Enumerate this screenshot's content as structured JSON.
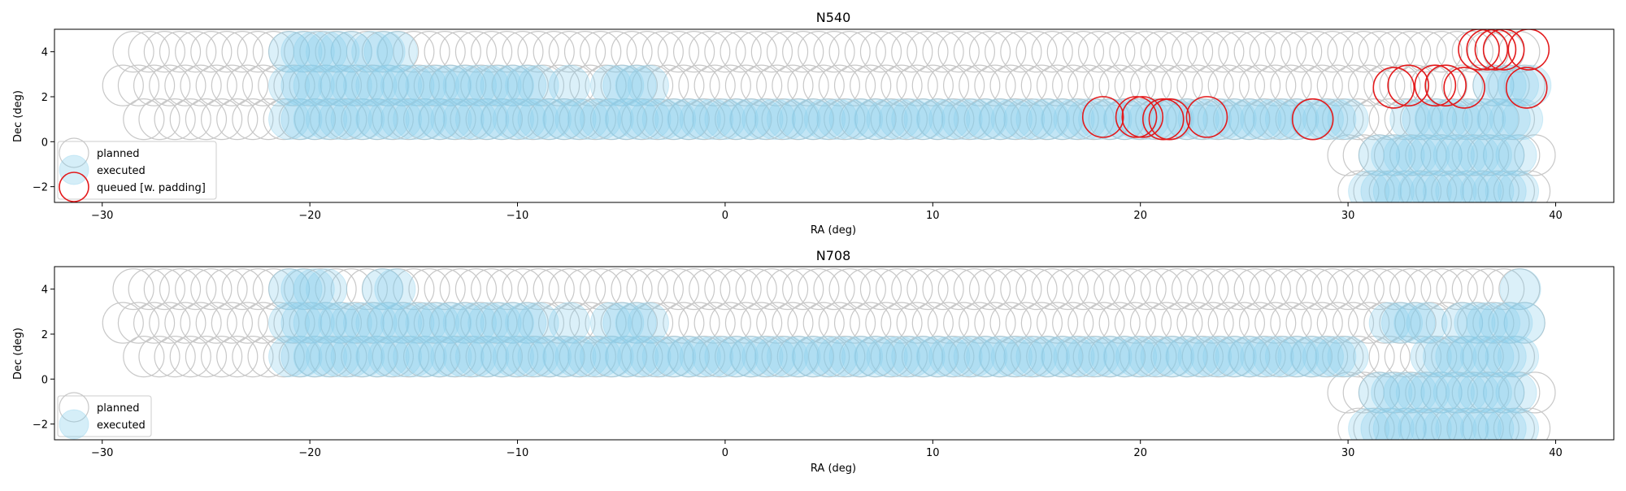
{
  "chart_data": [
    {
      "type": "scatter",
      "title": "N540",
      "xlabel": "RA (deg)",
      "ylabel": "Dec (deg)",
      "xlim": [
        -32.3,
        42.8
      ],
      "ylim": [
        -2.7,
        5.0
      ],
      "xticks": [
        -30,
        -20,
        -10,
        0,
        10,
        20,
        30,
        40
      ],
      "yticks": [
        -2,
        0,
        2,
        4
      ],
      "xtick_labels": [
        "−30",
        "−20",
        "−10",
        "0",
        "10",
        "20",
        "30",
        "40"
      ],
      "ytick_labels": [
        "−2",
        "0",
        "2",
        "4"
      ],
      "legend_loc": "lower left",
      "legend": [
        "planned",
        "executed",
        "queued [w. padding]"
      ],
      "colors": {
        "planned": "#c8c8c8",
        "executed": "#87ceeb",
        "queued": "#e31a1c"
      },
      "pointing_radius_deg": 1.0,
      "series": [
        {
          "name": "planned",
          "marker": "open-circle",
          "rows": [
            {
              "dec": 4.0,
              "ra_start": -28.5,
              "ra_end": 38.5,
              "step": 0.75
            },
            {
              "dec": 2.5,
              "ra_start": -29.0,
              "ra_end": 39.0,
              "step": 0.75
            },
            {
              "dec": 1.0,
              "ra_start": -28.0,
              "ra_end": 38.5,
              "step": 0.75
            },
            {
              "dec": -0.6,
              "ra_start": 30.0,
              "ra_end": 39.0,
              "step": 0.75
            },
            {
              "dec": -2.2,
              "ra_start": 30.5,
              "ra_end": 39.0,
              "step": 0.75
            }
          ]
        },
        {
          "name": "executed",
          "marker": "filled-circle",
          "segments": [
            {
              "dec": 4.0,
              "ra_start": -21.0,
              "ra_end": -18.0,
              "step": 0.6
            },
            {
              "dec": 4.0,
              "ra_start": -17.0,
              "ra_end": -15.5,
              "step": 0.6
            },
            {
              "dec": 2.5,
              "ra_start": -21.0,
              "ra_end": -8.5,
              "step": 0.6
            },
            {
              "dec": 2.5,
              "ra_start": -7.5,
              "ra_end": -7.5,
              "step": 0.6
            },
            {
              "dec": 2.5,
              "ra_start": -5.5,
              "ra_end": -3.5,
              "step": 0.6
            },
            {
              "dec": 2.5,
              "ra_start": 37.0,
              "ra_end": 39.0,
              "step": 0.6
            },
            {
              "dec": 1.0,
              "ra_start": -21.0,
              "ra_end": 30.0,
              "step": 0.6
            },
            {
              "dec": 1.0,
              "ra_start": 33.0,
              "ra_end": 38.5,
              "step": 0.6
            },
            {
              "dec": -0.6,
              "ra_start": 31.5,
              "ra_end": 38.5,
              "step": 0.6
            },
            {
              "dec": -2.2,
              "ra_start": 31.0,
              "ra_end": 38.5,
              "step": 0.6
            }
          ]
        },
        {
          "name": "queued [w. padding]",
          "marker": "open-circle",
          "points": [
            {
              "ra": 18.2,
              "dec": 1.1
            },
            {
              "ra": 19.8,
              "dec": 1.1
            },
            {
              "ra": 20.1,
              "dec": 1.1
            },
            {
              "ra": 21.1,
              "dec": 1.0
            },
            {
              "ra": 21.4,
              "dec": 1.0
            },
            {
              "ra": 23.2,
              "dec": 1.1
            },
            {
              "ra": 28.3,
              "dec": 1.0
            },
            {
              "ra": 32.2,
              "dec": 2.4
            },
            {
              "ra": 32.9,
              "dec": 2.5
            },
            {
              "ra": 34.2,
              "dec": 2.5
            },
            {
              "ra": 34.7,
              "dec": 2.5
            },
            {
              "ra": 35.6,
              "dec": 2.4
            },
            {
              "ra": 38.6,
              "dec": 2.4
            },
            {
              "ra": 36.3,
              "dec": 4.1
            },
            {
              "ra": 36.7,
              "dec": 4.1
            },
            {
              "ra": 37.1,
              "dec": 4.1
            },
            {
              "ra": 37.5,
              "dec": 4.1
            },
            {
              "ra": 38.7,
              "dec": 4.1
            }
          ]
        }
      ]
    },
    {
      "type": "scatter",
      "title": "N708",
      "xlabel": "RA (deg)",
      "ylabel": "Dec (deg)",
      "xlim": [
        -32.3,
        42.8
      ],
      "ylim": [
        -2.7,
        5.0
      ],
      "xticks": [
        -30,
        -20,
        -10,
        0,
        10,
        20,
        30,
        40
      ],
      "yticks": [
        -2,
        0,
        2,
        4
      ],
      "xtick_labels": [
        "−30",
        "−20",
        "−10",
        "0",
        "10",
        "20",
        "30",
        "40"
      ],
      "ytick_labels": [
        "−2",
        "0",
        "2",
        "4"
      ],
      "legend_loc": "lower left",
      "legend": [
        "planned",
        "executed"
      ],
      "colors": {
        "planned": "#c8c8c8",
        "executed": "#87ceeb"
      },
      "pointing_radius_deg": 1.0,
      "series": [
        {
          "name": "planned",
          "marker": "open-circle",
          "rows": [
            {
              "dec": 4.0,
              "ra_start": -28.5,
              "ra_end": 38.5,
              "step": 0.75
            },
            {
              "dec": 2.5,
              "ra_start": -29.0,
              "ra_end": 39.0,
              "step": 0.75
            },
            {
              "dec": 1.0,
              "ra_start": -28.0,
              "ra_end": 38.5,
              "step": 0.75
            },
            {
              "dec": -0.6,
              "ra_start": 30.0,
              "ra_end": 39.0,
              "step": 0.75
            },
            {
              "dec": -2.2,
              "ra_start": 30.5,
              "ra_end": 39.0,
              "step": 0.75
            }
          ]
        },
        {
          "name": "executed",
          "marker": "filled-circle",
          "segments": [
            {
              "dec": 4.0,
              "ra_start": -21.0,
              "ra_end": -19.0,
              "step": 0.6
            },
            {
              "dec": 4.0,
              "ra_start": -16.5,
              "ra_end": -15.5,
              "step": 0.6
            },
            {
              "dec": 4.0,
              "ra_start": 38.3,
              "ra_end": 38.3,
              "step": 0.6
            },
            {
              "dec": 2.5,
              "ra_start": -21.0,
              "ra_end": -8.5,
              "step": 0.6
            },
            {
              "dec": 2.5,
              "ra_start": -7.5,
              "ra_end": -7.5,
              "step": 0.6
            },
            {
              "dec": 2.5,
              "ra_start": -5.5,
              "ra_end": -3.5,
              "step": 0.6
            },
            {
              "dec": 2.5,
              "ra_start": 32.0,
              "ra_end": 34.0,
              "step": 0.6
            },
            {
              "dec": 2.5,
              "ra_start": 35.5,
              "ra_end": 39.0,
              "step": 0.6
            },
            {
              "dec": 1.0,
              "ra_start": -21.0,
              "ra_end": 30.0,
              "step": 0.6
            },
            {
              "dec": 1.0,
              "ra_start": 34.0,
              "ra_end": 38.5,
              "step": 0.6
            },
            {
              "dec": -0.6,
              "ra_start": 31.5,
              "ra_end": 38.5,
              "step": 0.6
            },
            {
              "dec": -2.2,
              "ra_start": 31.0,
              "ra_end": 38.5,
              "step": 0.6
            }
          ]
        }
      ]
    }
  ]
}
